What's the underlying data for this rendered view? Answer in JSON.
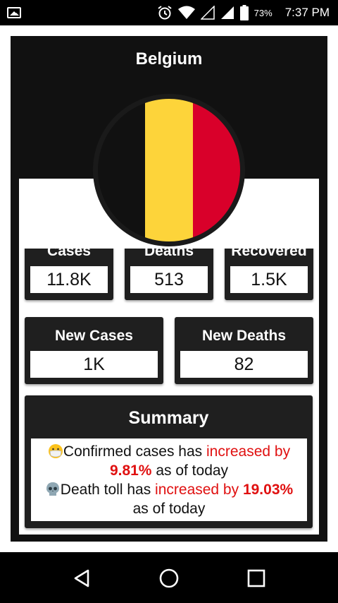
{
  "status_bar": {
    "battery_percent": "73%",
    "time": "7:37 PM",
    "icons": [
      "gallery-icon",
      "alarm-icon",
      "wifi-icon",
      "signal-empty-icon",
      "signal-icon",
      "battery-icon"
    ]
  },
  "card": {
    "country": "Belgium",
    "flag_colors": [
      "#111111",
      "#FDD43A",
      "#D9002A"
    ]
  },
  "stats": {
    "cases": {
      "label": "Cases",
      "value": "11.8K"
    },
    "deaths": {
      "label": "Deaths",
      "value": "513"
    },
    "recovered": {
      "label": "Recovered",
      "value": "1.5K"
    },
    "new_cases": {
      "label": "New Cases",
      "value": "1K"
    },
    "new_deaths": {
      "label": "New Deaths",
      "value": "82"
    }
  },
  "summary": {
    "title": "Summary",
    "confirmed_prefix": "Confirmed cases has ",
    "confirmed_change": "increased by ",
    "confirmed_pct": "9.81%",
    "confirmed_suffix": " as of today",
    "death_prefix": "Death toll has ",
    "death_change": "increased by ",
    "death_pct": "19.03%",
    "death_suffix": "as of today"
  },
  "nav": {
    "icons": [
      "back-icon",
      "home-icon",
      "recents-icon"
    ]
  }
}
